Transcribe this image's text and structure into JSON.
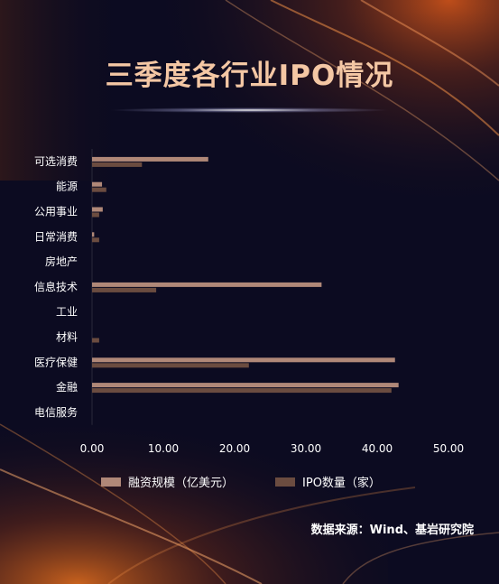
{
  "title": "三季度各行业IPO情况",
  "source": "数据来源：Wind、基岩研究院",
  "colors": {
    "series1": "#b08878",
    "series2": "#6b4c40",
    "title": "#f4c7a4",
    "text": "#ffffff"
  },
  "chart_data": {
    "type": "bar",
    "orientation": "horizontal",
    "title": "三季度各行业IPO情况",
    "categories": [
      "可选消费",
      "能源",
      "公用事业",
      "日常消费",
      "房地产",
      "信息技术",
      "工业",
      "材料",
      "医疗保健",
      "金融",
      "电信服务"
    ],
    "series": [
      {
        "name": "融资规模（亿美元）",
        "values": [
          16.3,
          1.4,
          1.5,
          0.3,
          0,
          32.2,
          0,
          0,
          42.5,
          43.0,
          0
        ]
      },
      {
        "name": "IPO数量（家）",
        "values": [
          7,
          2,
          1,
          1,
          0,
          9,
          0,
          1,
          22,
          42,
          0
        ]
      }
    ],
    "xlim": [
      0,
      50
    ],
    "xticks": [
      "0.00",
      "10.00",
      "20.00",
      "30.00",
      "40.00",
      "50.00"
    ],
    "grid": false,
    "legend_position": "bottom"
  }
}
